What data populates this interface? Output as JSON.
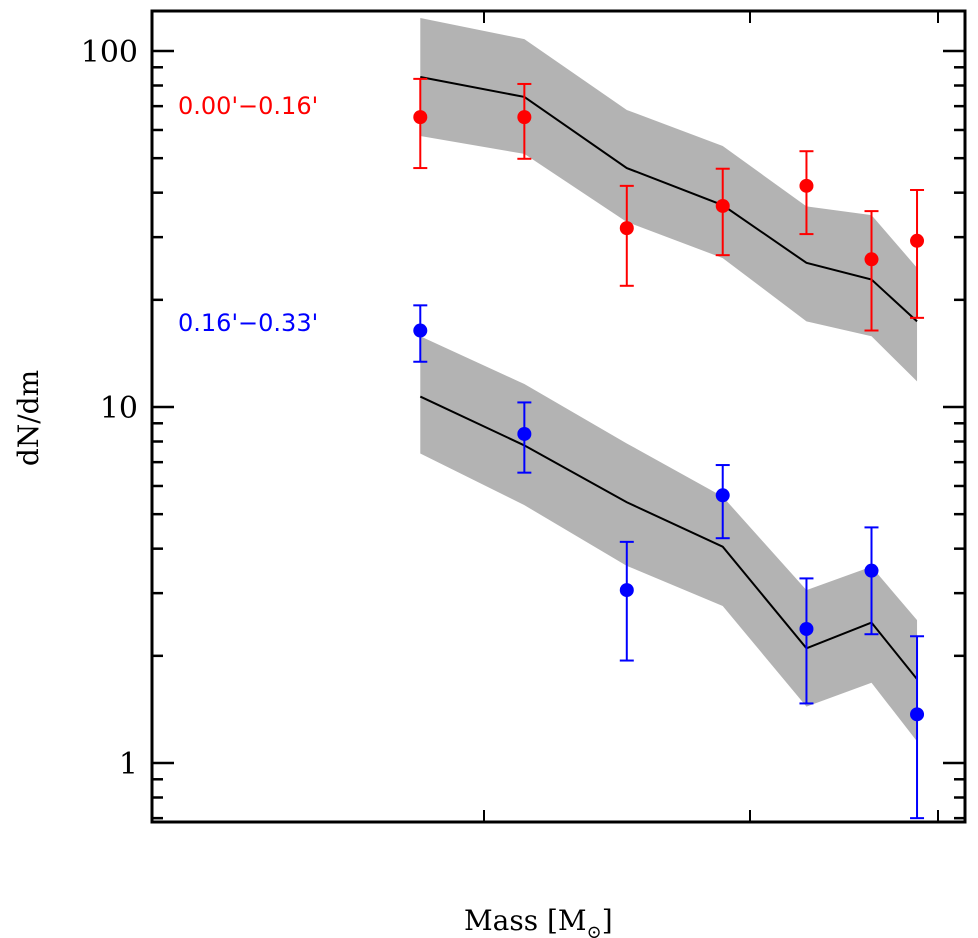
{
  "chart_data": {
    "type": "scatter",
    "title": "",
    "xlabel": "Mass [M",
    "xlabel_subscript": "⊙",
    "xlabel_close": "]",
    "ylabel": "dN/dm",
    "yscale": "log",
    "ylim": [
      0.7,
      140
    ],
    "yticks": [
      {
        "value": 1,
        "label": "1"
      },
      {
        "value": 10,
        "label": "10"
      },
      {
        "value": 100,
        "label": "100"
      }
    ],
    "xticks_unlabeled": [
      1,
      2,
      3
    ],
    "grid": false,
    "legend": "inline-left",
    "model_color": "#000000",
    "band_color": "#b3b3b3",
    "series": [
      {
        "name": "0.00'−0.16'",
        "color": "#ff0000",
        "values": [
          65.2,
          65.2,
          31.8,
          36.7,
          41.8,
          26.0,
          29.3
        ],
        "err_upper": [
          83.5,
          80.8,
          41.8,
          46.7,
          52.3,
          35.5,
          40.7
        ],
        "err_lower": [
          46.9,
          49.8,
          21.9,
          26.7,
          30.6,
          16.4,
          17.8
        ],
        "model": [
          84.5,
          74.3,
          46.9,
          36.9,
          25.4,
          22.8,
          17.4
        ],
        "band_upper": [
          123.8,
          108.0,
          68.3,
          54.1,
          36.6,
          34.6,
          24.6
        ],
        "band_lower": [
          57.7,
          51.4,
          33.1,
          26.2,
          17.4,
          15.8,
          11.8
        ]
      },
      {
        "name": "0.16'−0.33'",
        "color": "#0000ff",
        "values": [
          16.4,
          8.4,
          3.06,
          5.65,
          2.38,
          3.47,
          1.37
        ],
        "err_upper": [
          19.3,
          10.3,
          4.18,
          6.87,
          3.3,
          4.59,
          2.27
        ],
        "err_lower": [
          13.4,
          6.54,
          1.94,
          4.28,
          1.47,
          2.3,
          0.7
        ],
        "model": [
          10.7,
          7.8,
          5.4,
          4.05,
          2.1,
          2.48,
          1.72
        ],
        "band_upper": [
          15.8,
          11.6,
          7.9,
          5.6,
          3.06,
          3.56,
          2.52
        ],
        "band_lower": [
          7.4,
          5.3,
          3.58,
          2.76,
          1.44,
          1.68,
          1.15
        ]
      }
    ],
    "x_positions_relative": [
      0.33,
      0.458,
      0.584,
      0.702,
      0.805,
      0.885,
      0.941
    ]
  }
}
